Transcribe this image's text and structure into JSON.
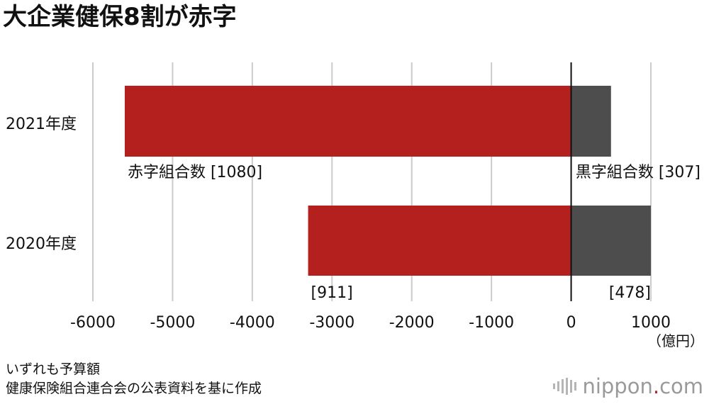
{
  "title": "大企業健保8割が赤字",
  "chart_data": {
    "type": "bar",
    "orientation": "horizontal",
    "stacked": "diverging",
    "categories": [
      "2021年度",
      "2020年度"
    ],
    "series": [
      {
        "name": "赤字組合数",
        "color": "#b4201e",
        "bar_values": [
          -5600,
          -3300
        ],
        "labels": [
          "赤字組合数 [1080]",
          "[911]"
        ]
      },
      {
        "name": "黒字組合数",
        "color": "#4d4d4d",
        "bar_values": [
          500,
          1000
        ],
        "labels": [
          "黒字組合数 [307]",
          "[478]"
        ]
      }
    ],
    "xlim": [
      -6000,
      1000
    ],
    "xticks": [
      -6000,
      -5000,
      -4000,
      -3000,
      -2000,
      -1000,
      0,
      1000
    ],
    "unit": "（億円）",
    "grid": true
  },
  "notes": [
    "いずれも予算額",
    "健康保険組合連合会の公表資料を基に作成"
  ],
  "logo": {
    "word": "nippon",
    "dot": ".",
    "suffix": "com"
  }
}
